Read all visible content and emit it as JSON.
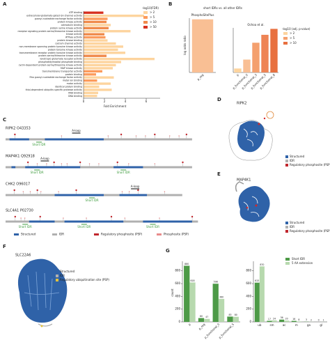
{
  "panel_labels": [
    "A",
    "B",
    "C",
    "D",
    "E",
    "F",
    "G"
  ],
  "chart_data": [
    {
      "type": "barh",
      "xlabel": "Fold Enrichment",
      "xlim": [
        0,
        8
      ],
      "xticks": [
        0,
        2,
        4,
        6
      ],
      "categories": [
        "ATP binding",
        "extracellular-glutamate-gated ion channel activity",
        "guanyl-nucleotide exchange factor activity",
        "protein kinase activity",
        "calmodulin binding",
        "protein serine kinase activity",
        "receptor signaling protein serine/threonine kinase activity",
        "kinase activity",
        "ATPase activity",
        "protein kinase binding",
        "calcium channel activity",
        "non-membrane spanning protein tyrosine kinase activity",
        "protein tyrosine kinase activity",
        "transmembrane receptor protein tyrosine kinase activity",
        "protein serine/threonine kinase activity",
        "ionotropic glutamate receptor activity",
        "phosphatidylinositol phosphate binding",
        "cyclin-dependent protein serine/threonine kinase activity",
        "MAP kinase activity",
        "transmembrane transporter activity",
        "protein binding",
        "Rho guanyl-nucleotide exchange factor activity",
        "metal ion binding",
        "motor activity",
        "identical protein binding",
        "thiol-dependent ubiquitin-specific protease activity",
        "RNA binding",
        "DNA binding"
      ],
      "values": [
        1.9,
        5.8,
        2.3,
        2.2,
        2.6,
        2.4,
        4.5,
        2.0,
        2.1,
        2.3,
        3.1,
        3.8,
        3.3,
        4.0,
        2.2,
        6.8,
        3.6,
        3.1,
        2.8,
        1.8,
        1.2,
        2.9,
        1.3,
        2.6,
        1.5,
        2.7,
        1.4,
        1.3
      ],
      "colors": [
        "#d7301f",
        "#fdd49e",
        "#fc9b5c",
        "#f08a4b",
        "#fdd49e",
        "#f08a4b",
        "#fdd49e",
        "#f08a4b",
        "#fc9b5c",
        "#fdd49e",
        "#fdd49e",
        "#fdd49e",
        "#fdd49e",
        "#fdd49e",
        "#f08a4b",
        "#fdd49e",
        "#fdd49e",
        "#fdd49e",
        "#fdd49e",
        "#fc9b5c",
        "#fc9b5c",
        "#fdd49e",
        "#fc9b5c",
        "#fdd49e",
        "#fdd49e",
        "#fdd49e",
        "#fdd49e",
        "#fdd49e"
      ],
      "legend": {
        "title": "-log10(FDR)",
        "labels": [
          "> 2",
          "> 5",
          "> 10",
          "> 50"
        ],
        "colors": [
          "#fdd49e",
          "#fc9b5c",
          "#f08a4b",
          "#d7301f"
        ]
      }
    },
    {
      "type": "bar",
      "suptitle": "short IDRs vs. all other IDRs",
      "title": "PhosphoSitePlus",
      "ylabel": "log odds ratio",
      "ylim": [
        0,
        0.45
      ],
      "categories": [
        "p_reg"
      ],
      "values": [
        0.44
      ],
      "colors": [
        "#f9bf94"
      ]
    },
    {
      "type": "bar",
      "title": "Ochoa et al.",
      "ylim": [
        0,
        0.45
      ],
      "categories": [
        "p",
        "p_functional_0",
        "p_functional_3",
        "p_functional_5",
        "p_functional_8"
      ],
      "values": [
        0.04,
        0.13,
        0.3,
        0.38,
        0.44
      ],
      "colors": [
        "#fdd49e",
        "#f9bf94",
        "#f4a06e",
        "#ee8455",
        "#e8703f"
      ],
      "legend": {
        "title": "-log10 (adj. p-value)",
        "labels": [
          "> 2",
          "> 5",
          "> 10"
        ],
        "colors": [
          "#fdd49e",
          "#f4a06e",
          "#e8703f"
        ]
      }
    },
    {
      "type": "groupbar",
      "ylabel": "count",
      "ylim": [
        0,
        950
      ],
      "yticks": [
        0,
        200,
        400,
        600,
        800
      ],
      "categories": [
        "p",
        "p_reg",
        "p_functional_0",
        "p_functional_5"
      ],
      "series": [
        {
          "name": "Short IDR",
          "color": "#4d9a47",
          "values": [
            880,
            60,
            598,
            83
          ]
        },
        {
          "name": "5 AA extension",
          "color": "#b7d9ae",
          "values": [
            618,
            47,
            360,
            80
          ]
        }
      ]
    },
    {
      "type": "groupbar",
      "ylim": [
        0,
        950
      ],
      "yticks": [
        0,
        200,
        400,
        600,
        800
      ],
      "categories": [
        "ub",
        "sm",
        "ac",
        "m",
        "ga",
        "gl"
      ],
      "series": [
        {
          "name": "Short IDR",
          "color": "#4d9a47",
          "values": [
            615,
            17,
            36,
            16,
            3,
            0
          ]
        },
        {
          "name": "5 AA extension",
          "color": "#b7d9ae",
          "values": [
            870,
            24,
            20,
            8,
            2,
            1
          ]
        }
      ]
    }
  ],
  "domains": {
    "proteins": [
      {
        "name": "RIPK2 O43353",
        "labels": [
          "A-loop",
          "Short IDR"
        ]
      },
      {
        "name": "MAP4K1 Q92918",
        "labels": [
          "A-loop",
          "Short IDR",
          "Short IDR"
        ]
      },
      {
        "name": "CHK2 O96017",
        "labels": [
          "A-loop",
          "Short IDR"
        ]
      },
      {
        "name": "SLC4A1 P02730",
        "labels": [
          "Short IDR",
          "Short IDR",
          "Short IDR"
        ]
      }
    ],
    "legend": [
      "Structured",
      "IDR",
      "Regulatory phosphosite (PSP)",
      "Phosphosite (PSP)"
    ]
  },
  "structures": [
    {
      "name": "RIPK2",
      "legend": [
        "Structured",
        "IDR",
        "Regulatory phosphosite (PSP)"
      ]
    },
    {
      "name": "MAP4K1",
      "legend": [
        "Structured",
        "IDR",
        "Regulatory phosphosite (PSP)"
      ]
    },
    {
      "name": "SLC22A6",
      "legend": [
        "Structured",
        "IDR",
        "Regulatory ubiquitination site (PSP)"
      ]
    }
  ]
}
